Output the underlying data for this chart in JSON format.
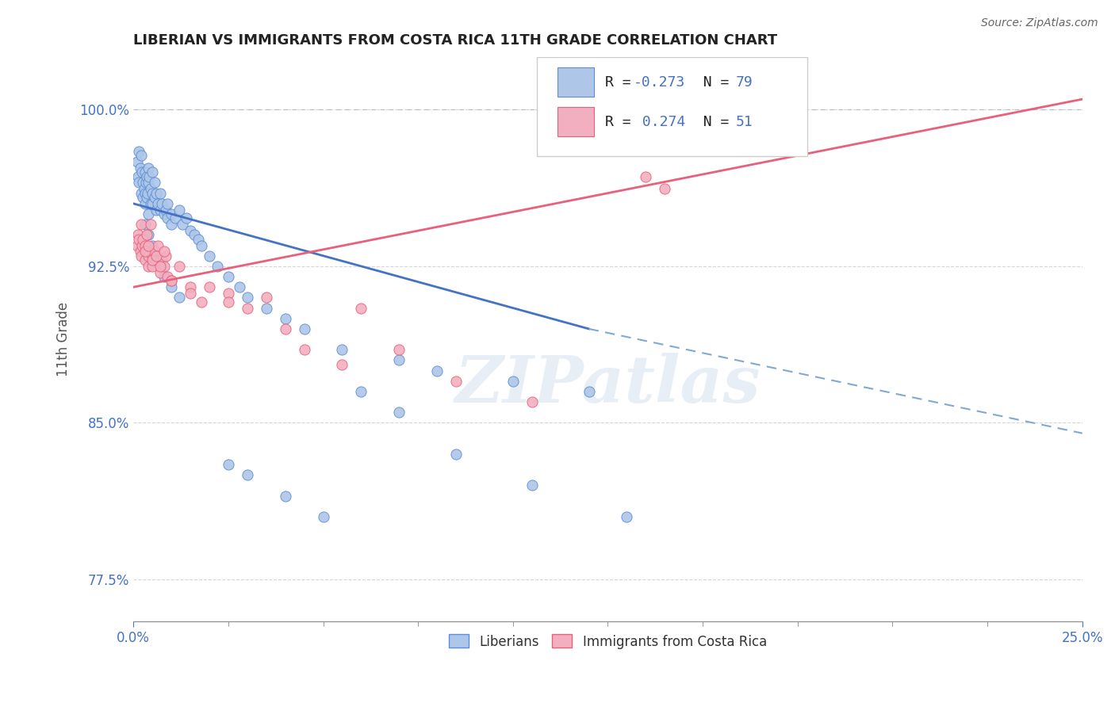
{
  "title": "LIBERIAN VS IMMIGRANTS FROM COSTA RICA 11TH GRADE CORRELATION CHART",
  "source_text": "Source: ZipAtlas.com",
  "ylabel": "11th Grade",
  "xlim": [
    0.0,
    25.0
  ],
  "ylim": [
    75.5,
    102.5
  ],
  "x_ticks": [
    0.0,
    25.0
  ],
  "x_tick_labels": [
    "0.0%",
    "25.0%"
  ],
  "y_ticks": [
    77.5,
    85.0,
    92.5,
    100.0
  ],
  "y_tick_labels": [
    "77.5%",
    "85.0%",
    "92.5%",
    "100.0%"
  ],
  "blue_R": -0.273,
  "blue_N": 79,
  "pink_R": 0.274,
  "pink_N": 51,
  "blue_color": "#aec6e8",
  "pink_color": "#f2afc0",
  "blue_edge_color": "#5b8ed6",
  "pink_edge_color": "#e8607a",
  "blue_line_color": "#4472c4",
  "pink_line_color": "#e8607a",
  "blue_dash_color": "#7fa8d4",
  "watermark_color": "#d8e4f0",
  "watermark_text": "ZIPatlas",
  "legend_label_blue": "Liberians",
  "legend_label_pink": "Immigrants from Costa Rica",
  "blue_trend_x0": 0.0,
  "blue_trend_y0": 95.5,
  "blue_trend_x1": 25.0,
  "blue_trend_y1": 86.0,
  "blue_dash_x0": 12.0,
  "blue_dash_y0": 89.5,
  "blue_dash_x1": 25.0,
  "blue_dash_y1": 84.5,
  "pink_trend_x0": 0.0,
  "pink_trend_y0": 91.5,
  "pink_trend_x1": 25.0,
  "pink_trend_y1": 100.5,
  "blue_x": [
    0.1,
    0.12,
    0.15,
    0.15,
    0.18,
    0.2,
    0.2,
    0.22,
    0.25,
    0.25,
    0.28,
    0.3,
    0.3,
    0.3,
    0.32,
    0.35,
    0.35,
    0.38,
    0.4,
    0.4,
    0.4,
    0.42,
    0.45,
    0.45,
    0.5,
    0.5,
    0.5,
    0.55,
    0.55,
    0.6,
    0.6,
    0.65,
    0.7,
    0.7,
    0.75,
    0.8,
    0.85,
    0.9,
    0.9,
    1.0,
    1.0,
    1.1,
    1.2,
    1.3,
    1.4,
    1.5,
    1.6,
    1.7,
    1.8,
    2.0,
    2.2,
    2.5,
    2.8,
    3.0,
    3.5,
    4.0,
    4.5,
    5.5,
    7.0,
    8.0,
    10.0,
    12.0,
    2.5,
    3.0,
    4.0,
    5.0,
    6.0,
    7.0,
    8.5,
    10.5,
    13.0,
    0.3,
    0.4,
    0.5,
    0.6,
    0.7,
    0.8,
    1.0,
    1.2
  ],
  "blue_y": [
    97.5,
    96.8,
    98.0,
    96.5,
    97.2,
    97.8,
    96.0,
    97.0,
    96.5,
    95.8,
    96.2,
    97.0,
    96.0,
    95.5,
    96.5,
    96.8,
    95.8,
    96.0,
    97.2,
    96.5,
    95.0,
    96.8,
    95.5,
    96.2,
    97.0,
    96.0,
    95.5,
    95.8,
    96.5,
    95.2,
    96.0,
    95.5,
    96.0,
    95.2,
    95.5,
    95.0,
    95.2,
    94.8,
    95.5,
    95.0,
    94.5,
    94.8,
    95.2,
    94.5,
    94.8,
    94.2,
    94.0,
    93.8,
    93.5,
    93.0,
    92.5,
    92.0,
    91.5,
    91.0,
    90.5,
    90.0,
    89.5,
    88.5,
    88.0,
    87.5,
    87.0,
    86.5,
    83.0,
    82.5,
    81.5,
    80.5,
    86.5,
    85.5,
    83.5,
    82.0,
    80.5,
    94.5,
    94.0,
    93.5,
    93.0,
    92.5,
    92.0,
    91.5,
    91.0
  ],
  "pink_x": [
    0.1,
    0.12,
    0.15,
    0.18,
    0.2,
    0.2,
    0.22,
    0.25,
    0.3,
    0.3,
    0.35,
    0.35,
    0.4,
    0.4,
    0.45,
    0.5,
    0.5,
    0.55,
    0.6,
    0.65,
    0.7,
    0.75,
    0.8,
    0.85,
    0.9,
    1.0,
    1.2,
    1.5,
    1.8,
    2.0,
    2.5,
    3.0,
    3.5,
    4.5,
    5.5,
    7.0,
    8.5,
    10.5,
    13.5,
    14.0,
    0.3,
    0.4,
    0.5,
    0.6,
    0.7,
    0.8,
    1.0,
    1.5,
    2.5,
    4.0,
    6.0
  ],
  "pink_y": [
    93.5,
    94.0,
    93.8,
    93.2,
    94.5,
    93.0,
    93.5,
    93.8,
    92.8,
    93.5,
    93.2,
    94.0,
    92.5,
    93.0,
    94.5,
    93.0,
    92.5,
    93.2,
    92.8,
    93.5,
    92.2,
    92.8,
    92.5,
    93.0,
    92.0,
    91.8,
    92.5,
    91.5,
    90.8,
    91.5,
    91.2,
    90.5,
    91.0,
    88.5,
    87.8,
    88.5,
    87.0,
    86.0,
    96.8,
    96.2,
    93.2,
    93.5,
    92.8,
    93.0,
    92.5,
    93.2,
    91.8,
    91.2,
    90.8,
    89.5,
    90.5
  ]
}
